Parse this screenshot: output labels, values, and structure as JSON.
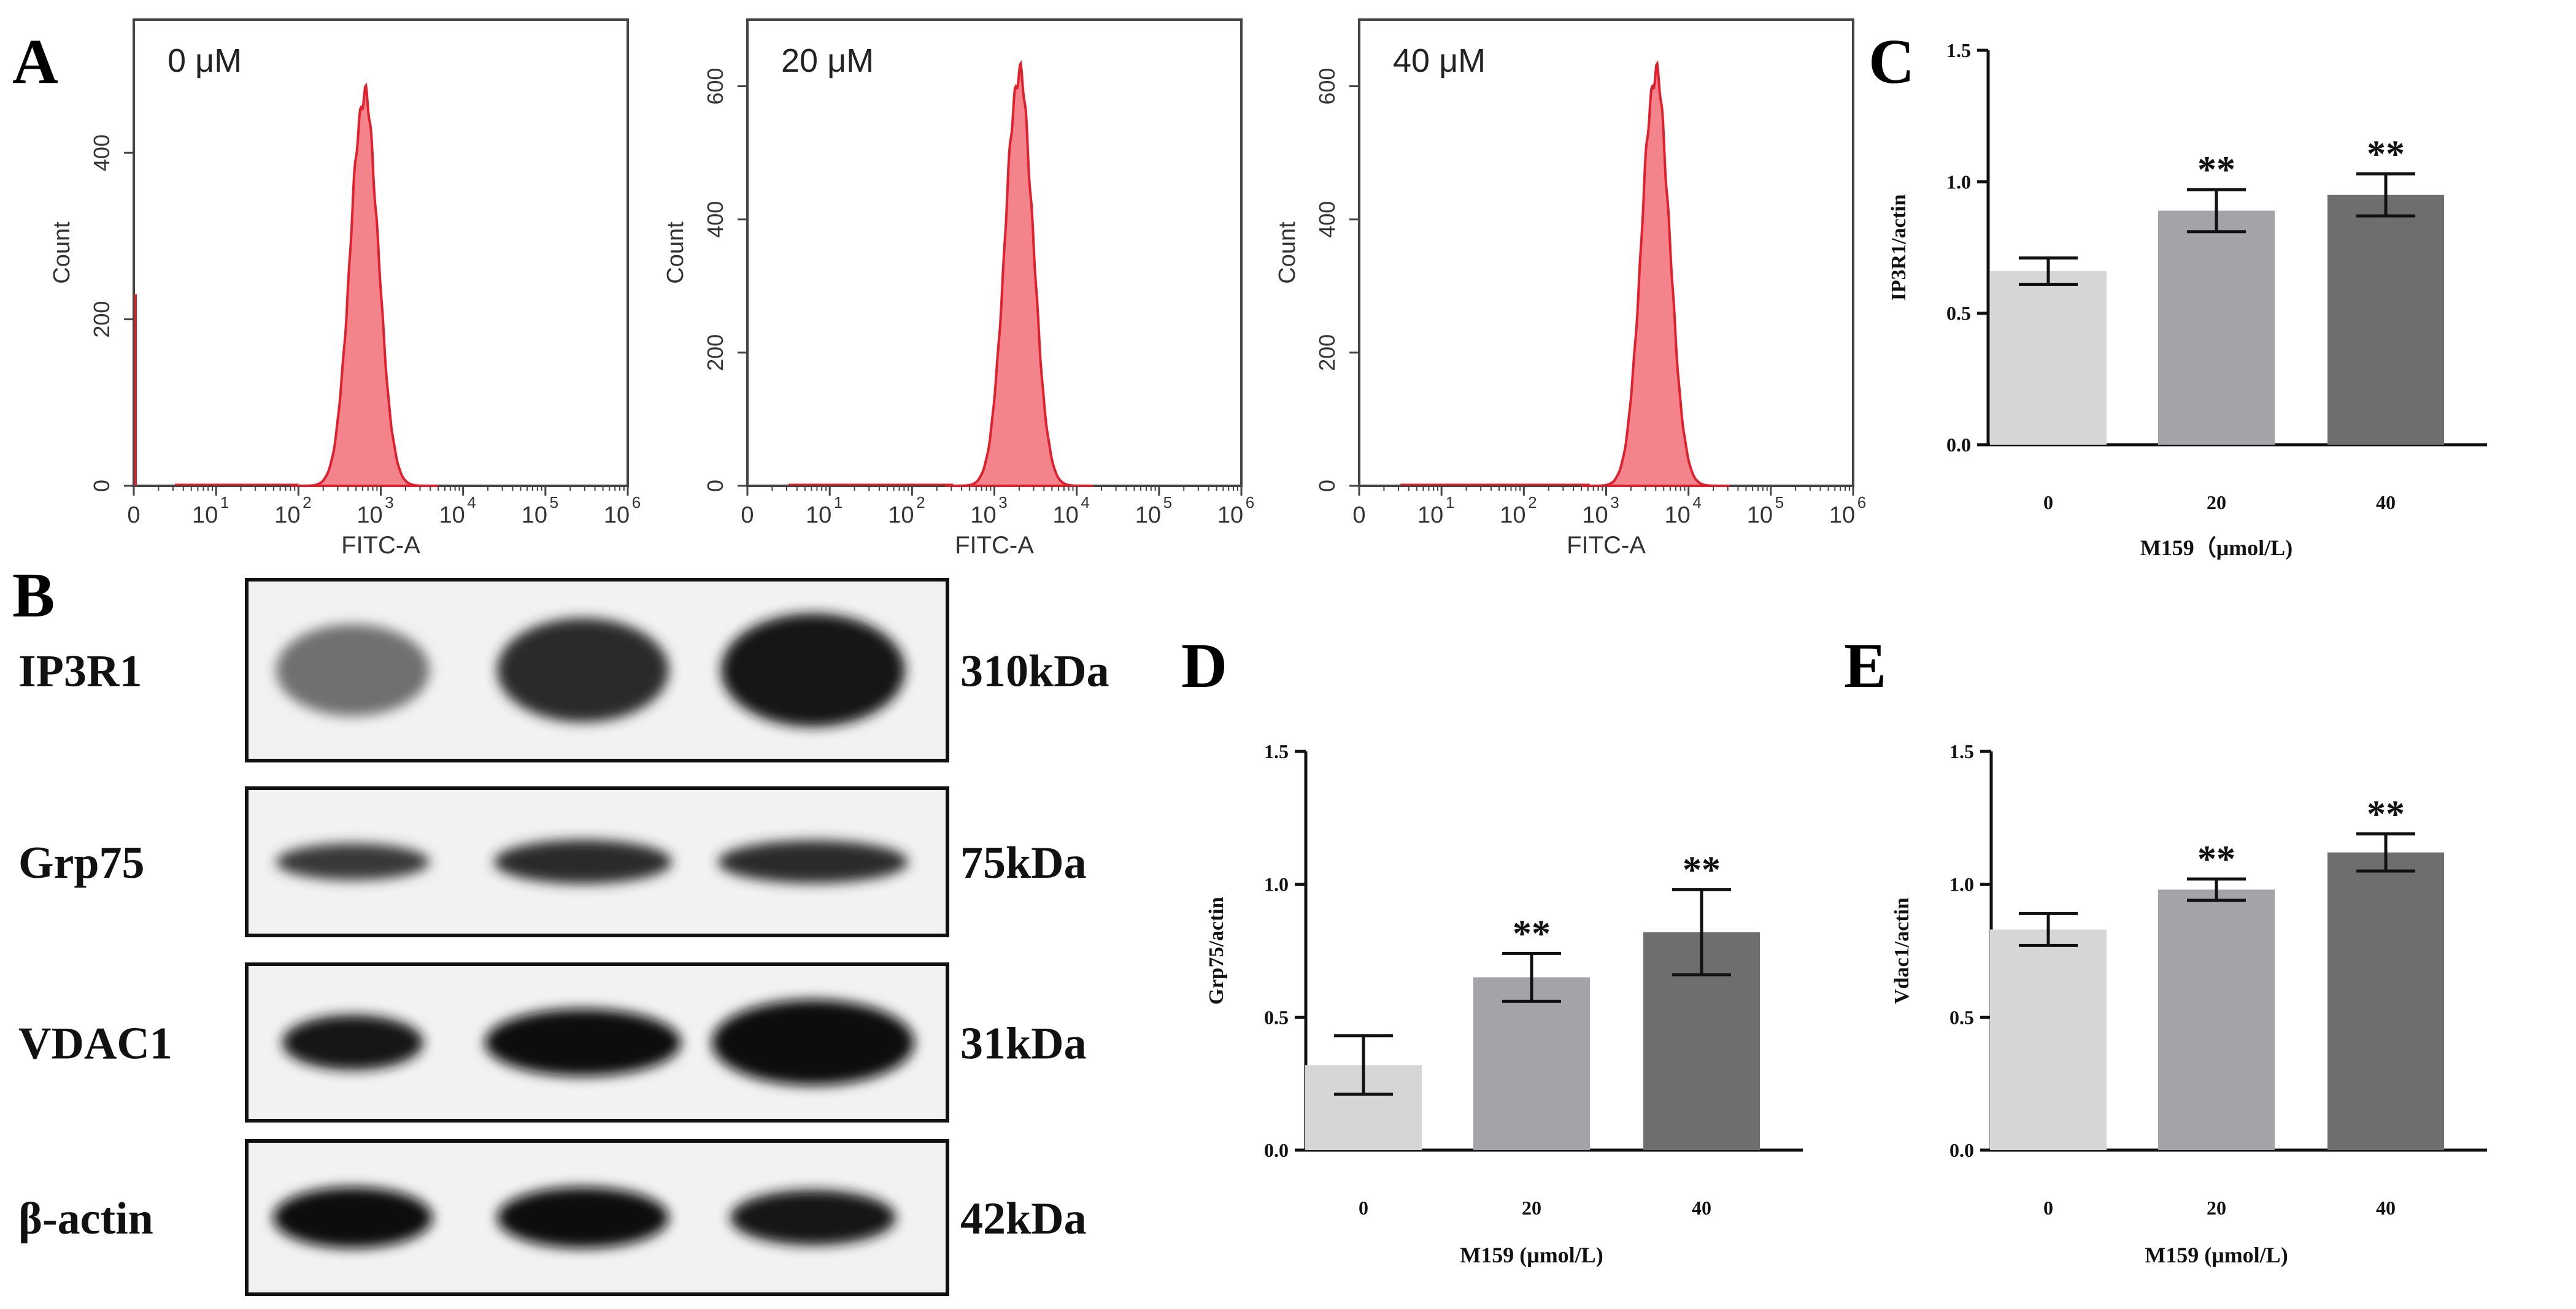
{
  "colors": {
    "histogram_fill": "#f4848c",
    "histogram_line": "#e0202c",
    "bar_0": "#d6d6d6",
    "bar_20": "#a4a4a8",
    "bar_40": "#6e6e6e",
    "blot_band": "#0a0a0a",
    "blot_bg": "#f2f2f2"
  },
  "panels": {
    "A": "A",
    "B": "B",
    "C": "C",
    "D": "D",
    "E": "E"
  },
  "flow": {
    "xlabel": "FITC-A",
    "ylabel": "Count",
    "x_tick_labels": [
      "0",
      "10",
      "10",
      "10",
      "10",
      "10",
      "10"
    ],
    "x_tick_exponents": [
      "",
      "1",
      "2",
      "3",
      "4",
      "5",
      "6"
    ],
    "plots": [
      {
        "label": "0 μM",
        "y_ticks": [
          "0",
          "200",
          "400"
        ],
        "peak_log10": 2.8,
        "peak_count": 470
      },
      {
        "label": "20 μM",
        "y_ticks": [
          "0",
          "200",
          "400",
          "600"
        ],
        "peak_log10": 3.3,
        "peak_count": 620
      },
      {
        "label": "40 μM",
        "y_ticks": [
          "0",
          "200",
          "400",
          "600"
        ],
        "peak_log10": 3.6,
        "peak_count": 620
      }
    ]
  },
  "blot": {
    "rows": [
      {
        "protein": "IP3R1",
        "size": "310kDa",
        "intensity": [
          0.55,
          0.85,
          0.95
        ]
      },
      {
        "protein": "Grp75",
        "size": "75kDa",
        "intensity": [
          0.8,
          0.85,
          0.85
        ]
      },
      {
        "protein": "VDAC1",
        "size": "31kDa",
        "intensity": [
          0.95,
          0.98,
          1.0
        ]
      },
      {
        "protein": "β-actin",
        "size": "42kDa",
        "intensity": [
          1.0,
          1.0,
          0.95
        ]
      }
    ]
  },
  "chart_data": [
    {
      "id": "C",
      "type": "bar",
      "categories": [
        "0",
        "20",
        "40"
      ],
      "values": [
        0.66,
        0.89,
        0.95
      ],
      "errors": [
        0.05,
        0.08,
        0.08
      ],
      "annotations": [
        "",
        "**",
        "**"
      ],
      "ylabel": "IP3R1/actin",
      "xlabel": "M159（μmol/L)",
      "ylim": [
        0,
        1.5
      ],
      "y_ticks": [
        "0.0",
        "0.5",
        "1.0",
        "1.5"
      ]
    },
    {
      "id": "D",
      "type": "bar",
      "categories": [
        "0",
        "20",
        "40"
      ],
      "values": [
        0.32,
        0.65,
        0.82
      ],
      "errors": [
        0.11,
        0.09,
        0.16
      ],
      "annotations": [
        "",
        "**",
        "**"
      ],
      "ylabel": "Grp75/actin",
      "xlabel": "M159 (μmol/L)",
      "ylim": [
        0,
        1.5
      ],
      "y_ticks": [
        "0.0",
        "0.5",
        "1.0",
        "1.5"
      ]
    },
    {
      "id": "E",
      "type": "bar",
      "categories": [
        "0",
        "20",
        "40"
      ],
      "values": [
        0.83,
        0.98,
        1.12
      ],
      "errors": [
        0.06,
        0.04,
        0.07
      ],
      "annotations": [
        "",
        "**",
        "**"
      ],
      "ylabel": "Vdac1/actin",
      "xlabel": "M159 (μmol/L)",
      "ylim": [
        0,
        1.5
      ],
      "y_ticks": [
        "0.0",
        "0.5",
        "1.0",
        "1.5"
      ]
    }
  ]
}
